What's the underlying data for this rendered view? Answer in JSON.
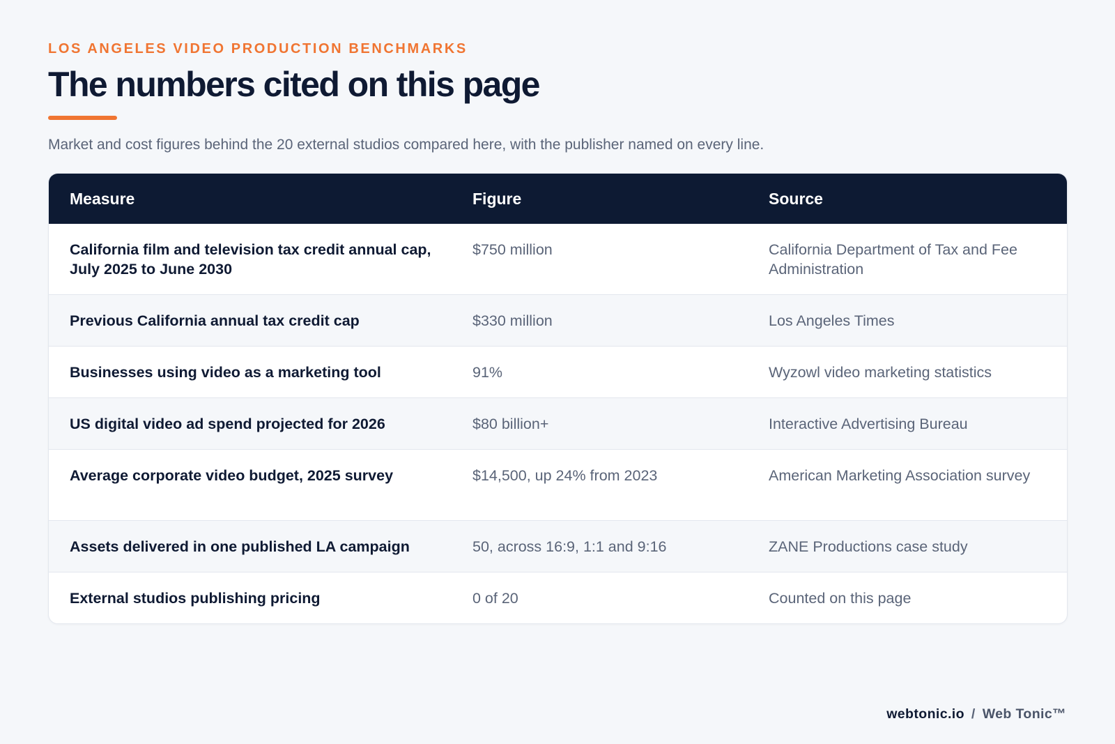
{
  "header": {
    "eyebrow": "LOS ANGELES VIDEO PRODUCTION BENCHMARKS",
    "title": "The numbers cited on this page",
    "subtitle": "Market and cost figures behind the 20 external studios compared here, with the publisher named on every line."
  },
  "table": {
    "columns": [
      "Measure",
      "Figure",
      "Source"
    ],
    "rows": [
      {
        "measure": "California film and television tax credit annual cap, July 2025 to June 2030",
        "figure": "$750 million",
        "source": "California Department of Tax and Fee Administration"
      },
      {
        "measure": "Previous California annual tax credit cap",
        "figure": "$330 million",
        "source": "Los Angeles Times"
      },
      {
        "measure": "Businesses using video as a marketing tool",
        "figure": "91%",
        "source": "Wyzowl video marketing statistics"
      },
      {
        "measure": "US digital video ad spend projected for 2026",
        "figure": "$80 billion+",
        "source": "Interactive Advertising Bureau"
      },
      {
        "measure": "Average corporate video budget, 2025 survey",
        "figure": "$14,500, up 24% from 2023",
        "source": "American Marketing Association survey"
      },
      {
        "measure": "Assets delivered in one published LA campaign",
        "figure": "50, across 16:9, 1:1 and 9:16",
        "source": "ZANE Productions case study"
      },
      {
        "measure": "External studios publishing pricing",
        "figure": "0 of 20",
        "source": "Counted on this page"
      }
    ]
  },
  "footer": {
    "domain": "webtonic.io",
    "separator": "/",
    "brand": "Web Tonic™"
  },
  "colors": {
    "accent": "#f07532",
    "header_bg": "#0d1a33",
    "page_bg": "#f5f7fa",
    "text_dark": "#0f1a33",
    "text_muted": "#5a6478"
  }
}
